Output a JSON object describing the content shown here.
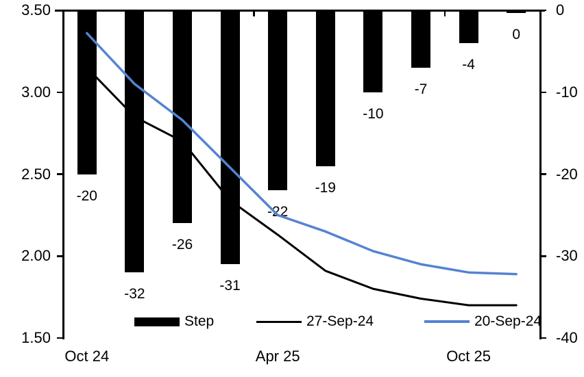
{
  "chart_data": {
    "type": "combo",
    "subtype": "bar+line, dual axis, bars hang from zero at top of secondary axis",
    "n_categories": 10,
    "background_color": "#ffffff",
    "axis_color": "#000000",
    "left_axis": {
      "min": 1.5,
      "max": 3.5,
      "tick_labels": [
        "3.50",
        "3.00",
        "2.50",
        "2.00",
        "1.50"
      ]
    },
    "right_axis": {
      "min": -40,
      "max": 0,
      "tick_labels": [
        "0",
        "-10",
        "-20",
        "-30",
        "-40"
      ]
    },
    "x_axis": {
      "labels": [
        {
          "text": "Oct 24",
          "category": 0
        },
        {
          "text": "Apr 25",
          "category": 4
        },
        {
          "text": "Oct 25",
          "category": 8
        }
      ],
      "tick_category_boundaries": [
        0,
        4,
        8
      ]
    },
    "series": [
      {
        "name": "Step",
        "type": "bar",
        "axis": "right",
        "color": "#000000",
        "values": [
          -20,
          -32,
          -26,
          -31,
          -22,
          -19,
          -10,
          -7,
          -4,
          0
        ],
        "data_labels": [
          "-20",
          "-32",
          "-26",
          "-31",
          "-22",
          "-19",
          "-10",
          "-7",
          "-4",
          "0"
        ]
      },
      {
        "name": "27-Sep-24",
        "type": "line",
        "axis": "left",
        "color": "#000000",
        "stroke_width": 3,
        "values": [
          3.15,
          2.85,
          2.7,
          2.34,
          2.13,
          1.91,
          1.8,
          1.74,
          1.7,
          1.7
        ]
      },
      {
        "name": "20-Sep-24",
        "type": "line",
        "axis": "left",
        "color": "#5583d1",
        "stroke_width": 3.5,
        "values": [
          3.36,
          3.05,
          2.83,
          2.54,
          2.25,
          2.15,
          2.03,
          1.95,
          1.9,
          1.89
        ]
      }
    ],
    "legend": {
      "position": "bottom-inside",
      "entries": [
        "Step",
        "27-Sep-24",
        "20-Sep-24"
      ]
    }
  }
}
